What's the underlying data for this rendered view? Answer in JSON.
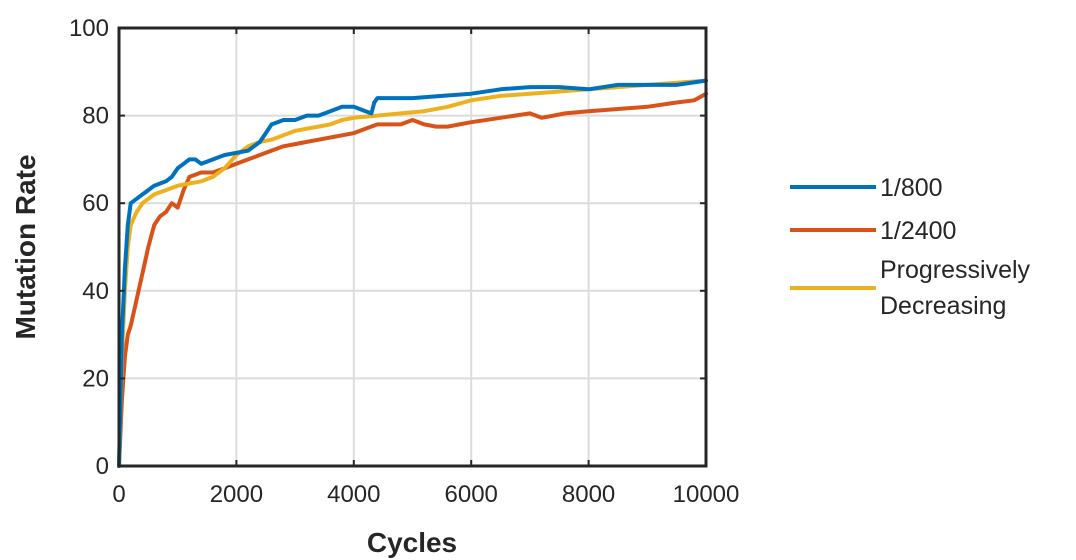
{
  "chart_data": {
    "type": "line",
    "xlabel": "Cycles",
    "ylabel": "Mutation Rate",
    "xlim": [
      0,
      10000
    ],
    "ylim": [
      0,
      100
    ],
    "xticks": [
      "0",
      "2000",
      "4000",
      "6000",
      "8000",
      "10000"
    ],
    "yticks": [
      "0",
      "20",
      "40",
      "60",
      "80",
      "100"
    ],
    "grid": true,
    "legend_position": "outside-right",
    "series": [
      {
        "name": "1/800",
        "color": "#0072BD",
        "x": [
          0,
          50,
          100,
          150,
          200,
          300,
          400,
          500,
          600,
          700,
          800,
          900,
          1000,
          1100,
          1200,
          1300,
          1400,
          1500,
          1600,
          1800,
          2000,
          2200,
          2400,
          2500,
          2600,
          2700,
          2800,
          3000,
          3200,
          3400,
          3600,
          3800,
          4000,
          4200,
          4300,
          4350,
          4400,
          4600,
          5000,
          5500,
          6000,
          6500,
          7000,
          7500,
          8000,
          8500,
          9000,
          9500,
          10000
        ],
        "y": [
          0,
          30,
          45,
          55,
          60,
          61,
          62,
          63,
          64,
          64.5,
          65,
          66,
          68,
          69,
          70,
          70,
          69,
          69.5,
          70,
          71,
          71.5,
          72,
          74,
          76,
          78,
          78.5,
          79,
          79,
          80,
          80,
          81,
          82,
          82,
          81,
          80.5,
          83,
          84,
          84,
          84,
          84.5,
          85,
          86,
          86.5,
          86.5,
          86,
          87,
          87,
          87,
          88
        ]
      },
      {
        "name": "1/2400",
        "color": "#D95319",
        "x": [
          0,
          50,
          100,
          150,
          200,
          300,
          400,
          500,
          600,
          700,
          800,
          900,
          1000,
          1100,
          1200,
          1400,
          1600,
          1800,
          2000,
          2200,
          2400,
          2600,
          2800,
          3000,
          3200,
          3400,
          3600,
          3800,
          4000,
          4200,
          4400,
          4600,
          4800,
          5000,
          5200,
          5400,
          5600,
          5800,
          6000,
          6500,
          7000,
          7200,
          7400,
          7600,
          8000,
          8500,
          9000,
          9500,
          9800,
          10000
        ],
        "y": [
          0,
          15,
          25,
          30,
          32,
          38,
          44,
          50,
          55,
          57,
          58,
          60,
          59,
          63,
          66,
          67,
          67,
          68,
          69,
          70,
          71,
          72,
          73,
          73.5,
          74,
          74.5,
          75,
          75.5,
          76,
          77,
          78,
          78,
          78,
          79,
          78,
          77.5,
          77.5,
          78,
          78.5,
          79.5,
          80.5,
          79.5,
          80,
          80.5,
          81,
          81.5,
          82,
          83,
          83.5,
          85
        ]
      },
      {
        "name": "Progressively Decreasing",
        "color": "#EDB120",
        "x": [
          0,
          50,
          100,
          150,
          200,
          300,
          400,
          500,
          600,
          800,
          1000,
          1200,
          1400,
          1600,
          1800,
          2000,
          2200,
          2400,
          2600,
          2800,
          3000,
          3200,
          3400,
          3600,
          3800,
          4000,
          4400,
          4800,
          5200,
          5600,
          6000,
          6500,
          7000,
          7500,
          8000,
          8500,
          9000,
          9500,
          10000
        ],
        "y": [
          0,
          25,
          40,
          50,
          55,
          58,
          60,
          61,
          62,
          63,
          64,
          64.5,
          65,
          66,
          68,
          71,
          73,
          74,
          74.5,
          75.5,
          76.5,
          77,
          77.5,
          78,
          79,
          79.5,
          80,
          80.5,
          81,
          82,
          83.5,
          84.5,
          85,
          85.5,
          86,
          86.5,
          87,
          87.5,
          88
        ]
      }
    ]
  },
  "legend": {
    "items": [
      {
        "line1": "1/800",
        "line2": ""
      },
      {
        "line1": "1/2400",
        "line2": ""
      },
      {
        "line1": "Progressively",
        "line2": "Decreasing"
      }
    ]
  }
}
